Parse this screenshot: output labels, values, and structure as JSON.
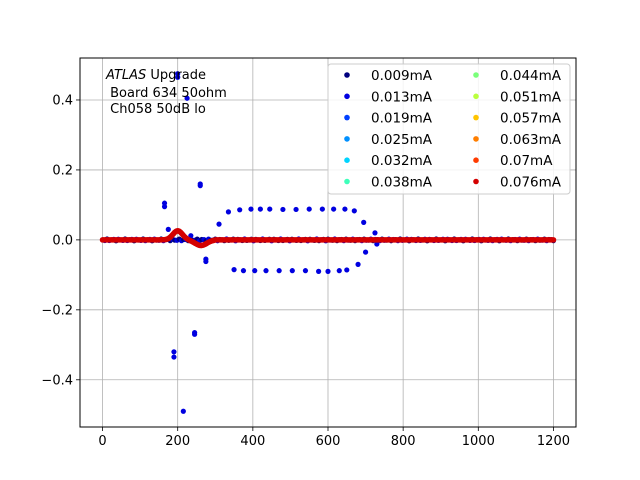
{
  "chart_data": {
    "type": "scatter",
    "title": "",
    "xlabel": "",
    "ylabel": "",
    "xlim": [
      -60,
      1260
    ],
    "ylim": [
      -0.535,
      0.52
    ],
    "xticks": [
      0,
      200,
      400,
      600,
      800,
      1000,
      1200
    ],
    "yticks": [
      -0.4,
      -0.2,
      0.0,
      0.2,
      0.4
    ],
    "xtick_labels": [
      "0",
      "200",
      "400",
      "600",
      "800",
      "1000",
      "1200"
    ],
    "ytick_labels": [
      "−0.4",
      "−0.2",
      "0.0",
      "0.2",
      "0.4"
    ],
    "grid": true,
    "legend_position": "top-right",
    "legend_columns": 2,
    "annotation": {
      "line1_italic": "ATLAS",
      "line1_rest": " Upgrade",
      "line2": " Board 634 50ohm",
      "line3": " Ch058 50dB lo"
    },
    "series": [
      {
        "name": "0.009mA",
        "color": "#00007f"
      },
      {
        "name": "0.013mA",
        "color": "#0000e0"
      },
      {
        "name": "0.019mA",
        "color": "#0040ff"
      },
      {
        "name": "0.025mA",
        "color": "#0090ff"
      },
      {
        "name": "0.032mA",
        "color": "#00d4ff"
      },
      {
        "name": "0.038mA",
        "color": "#3dffba"
      },
      {
        "name": "0.044mA",
        "color": "#7aff7a"
      },
      {
        "name": "0.051mA",
        "color": "#baff3d"
      },
      {
        "name": "0.057mA",
        "color": "#ffc400"
      },
      {
        "name": "0.063mA",
        "color": "#ff7e00"
      },
      {
        "name": "0.07mA",
        "color": "#ff3b00"
      },
      {
        "name": "0.076mA",
        "color": "#d40000"
      }
    ],
    "outlier_points": [
      [
        165,
        0.105
      ],
      [
        165,
        0.095
      ],
      [
        175,
        0.03
      ],
      [
        190,
        -0.32
      ],
      [
        190,
        -0.335
      ],
      [
        200,
        0.475
      ],
      [
        200,
        0.465
      ],
      [
        215,
        -0.49
      ],
      [
        225,
        0.405
      ],
      [
        235,
        0.012
      ],
      [
        245,
        -0.265
      ],
      [
        245,
        -0.27
      ],
      [
        260,
        0.16
      ],
      [
        260,
        0.155
      ],
      [
        275,
        -0.055
      ],
      [
        275,
        -0.062
      ],
      [
        310,
        0.045
      ],
      [
        335,
        0.08
      ],
      [
        350,
        -0.085
      ],
      [
        365,
        0.086
      ],
      [
        375,
        -0.088
      ],
      [
        395,
        0.088
      ],
      [
        405,
        -0.088
      ],
      [
        420,
        0.088
      ],
      [
        435,
        -0.088
      ],
      [
        445,
        0.088
      ],
      [
        470,
        -0.088
      ],
      [
        480,
        0.087
      ],
      [
        505,
        -0.088
      ],
      [
        515,
        0.087
      ],
      [
        540,
        -0.088
      ],
      [
        550,
        0.088
      ],
      [
        575,
        -0.09
      ],
      [
        585,
        0.088
      ],
      [
        600,
        -0.09
      ],
      [
        615,
        0.088
      ],
      [
        630,
        -0.088
      ],
      [
        645,
        0.088
      ],
      [
        650,
        -0.086
      ],
      [
        670,
        0.083
      ],
      [
        680,
        -0.07
      ],
      [
        695,
        0.05
      ],
      [
        700,
        -0.035
      ],
      [
        725,
        0.02
      ],
      [
        730,
        -0.012
      ]
    ],
    "pulse_series": [
      {
        "series": "0.009mA",
        "amplitude": 0.0,
        "jitter": 0.003
      },
      {
        "series": "0.076mA",
        "amplitude": 0.026,
        "jitter": 0.0
      }
    ]
  }
}
